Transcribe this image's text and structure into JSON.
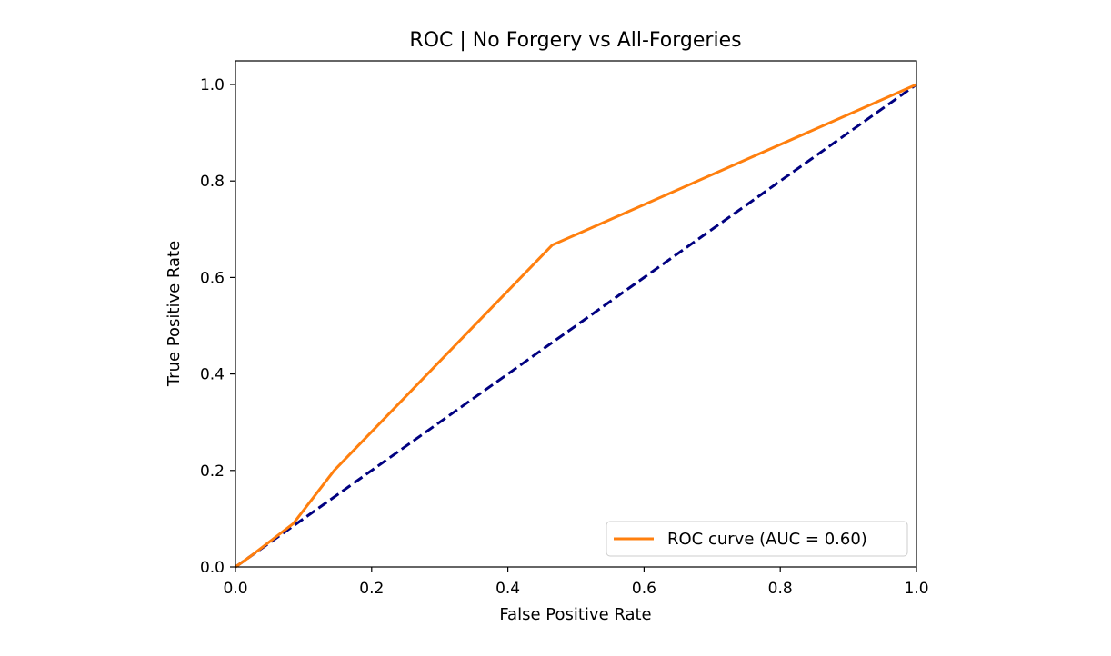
{
  "chart_data": {
    "type": "line",
    "title": "ROC | No Forgery vs All-Forgeries",
    "xlabel": "False Positive Rate",
    "ylabel": "True Positive Rate",
    "xlim": [
      0.0,
      1.0
    ],
    "ylim": [
      0.0,
      1.0
    ],
    "xticks": [
      "0.0",
      "0.2",
      "0.4",
      "0.6",
      "0.8",
      "1.0"
    ],
    "yticks": [
      "0.0",
      "0.2",
      "0.4",
      "0.6",
      "0.8",
      "1.0"
    ],
    "grid": false,
    "legend_position": "lower right",
    "series": [
      {
        "name": "ROC curve (AUC = 0.60)",
        "color": "#ff7f0e",
        "style": "solid",
        "x": [
          0.0,
          0.02,
          0.085,
          0.145,
          0.465,
          1.0
        ],
        "y": [
          0.0,
          0.02,
          0.09,
          0.2,
          0.667,
          1.0
        ]
      },
      {
        "color": "#000080",
        "style": "dashed",
        "x": [
          0.0,
          1.0
        ],
        "y": [
          0.0,
          1.0
        ]
      }
    ]
  }
}
